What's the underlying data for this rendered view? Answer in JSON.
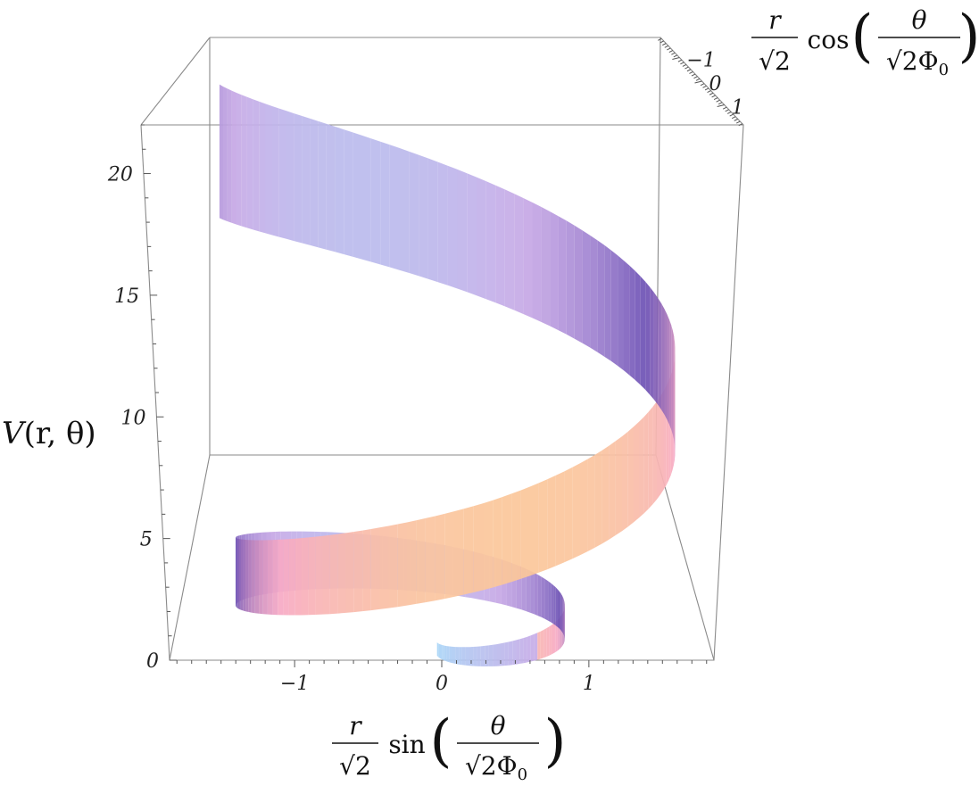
{
  "chart_data": {
    "type": "surface3d",
    "description_of_axes": {
      "vertical": {
        "label_main": "V",
        "label_args": "(r, θ)",
        "ylim": [
          0,
          22
        ]
      },
      "horizontal": {
        "label_num": "r",
        "label_den": "√2",
        "func": "sin",
        "arg_num": "θ",
        "arg_den": "√2Φ",
        "arg_sub": "0",
        "xlim": [
          -1.85,
          1.85
        ]
      },
      "depth": {
        "label_num": "r",
        "label_den": "√2",
        "func": "cos",
        "arg_num": "θ",
        "arg_den": "√2Φ",
        "arg_sub": "0",
        "zlim": [
          -1.85,
          1.85
        ]
      }
    },
    "ticks": {
      "vertical": [
        "0",
        "5",
        "10",
        "15",
        "20"
      ],
      "horizontal": [
        "-1",
        "0",
        "1"
      ],
      "depth": [
        "-1",
        "0",
        "1"
      ]
    },
    "ticks_display": {
      "vertical": [
        "0",
        "5",
        "10",
        "15",
        "20"
      ],
      "horizontal": [
        "−1",
        "0",
        "1"
      ],
      "depth": [
        "−1",
        "0",
        "1"
      ]
    },
    "surface": {
      "shape": "helical ribbon",
      "turns": 1.7,
      "radius_max": 1.6,
      "height_range": [
        0,
        22
      ],
      "colors": [
        "#a9d6f7",
        "#c7a9e6",
        "#6b4fb3",
        "#f7a9c4",
        "#fbc79a"
      ]
    }
  }
}
